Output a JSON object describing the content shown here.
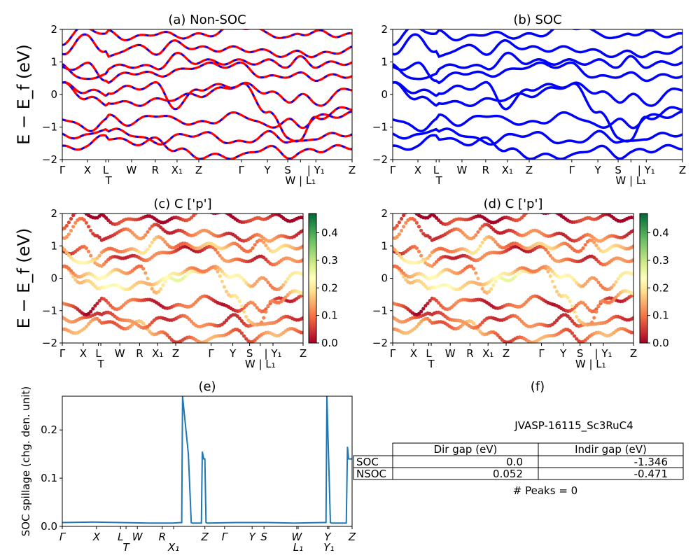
{
  "chart_data": [
    {
      "panel": "a",
      "type": "line",
      "title": "(a) Non-SOC",
      "ylabel": "E − E_f (eV)",
      "ylim": [
        -2,
        2
      ],
      "yticks": [
        "−2",
        "−1",
        "0",
        "1",
        "2"
      ],
      "xtick_labels": [
        "Γ",
        "X",
        "L",
        "T",
        "W",
        "R",
        "X₁",
        "Z",
        "Γ",
        "Y",
        "S",
        "W | L₁",
        "| Y₁",
        "Z"
      ],
      "series_colors": [
        "#ff0000",
        "#0000ff"
      ],
      "line_style": "red solid with blue dashes",
      "bands_at_ticks": [
        [
          -1.65,
          -1.6,
          -1.2,
          -1.3,
          -1.5,
          -1.4,
          -1.7,
          -1.9,
          -1.9,
          -1.6,
          -1.9,
          -1.8,
          -1.7,
          -1.6
        ],
        [
          -1.25,
          -1.3,
          -1.0,
          -1.1,
          -1.2,
          -1.5,
          -1.3,
          -1.2,
          -1.5,
          -1.2,
          -1.4,
          -1.5,
          -1.3,
          -1.2
        ],
        [
          -0.7,
          -1.1,
          -0.8,
          -0.7,
          -0.9,
          -0.6,
          -0.8,
          -0.9,
          -0.6,
          -1.0,
          -0.8,
          -1.0,
          -0.7,
          -0.6
        ],
        [
          0.3,
          -0.1,
          -0.3,
          -0.2,
          -0.3,
          -0.2,
          -0.1,
          0.0,
          0.3,
          -0.5,
          -1.3,
          -1.4,
          -0.7,
          -0.4
        ],
        [
          0.3,
          0.1,
          0.0,
          0.1,
          0.2,
          0.3,
          -0.4,
          0.2,
          0.3,
          0.1,
          -0.2,
          0.0,
          -0.3,
          0.2
        ],
        [
          0.8,
          0.9,
          0.5,
          0.4,
          0.7,
          0.6,
          0.7,
          0.9,
          0.9,
          0.5,
          0.6,
          0.6,
          0.5,
          0.6
        ],
        [
          0.9,
          0.4,
          0.7,
          0.8,
          0.9,
          0.8,
          1.2,
          1.0,
          1.0,
          1.0,
          0.9,
          1.1,
          0.9,
          1.0
        ],
        [
          1.3,
          1.8,
          1.3,
          1.1,
          1.5,
          1.3,
          1.6,
          1.4,
          1.4,
          1.3,
          1.2,
          1.3,
          1.2,
          1.4
        ],
        [
          1.6,
          2.1,
          1.8,
          1.9,
          1.7,
          1.9,
          1.8,
          1.8,
          2.1,
          1.9,
          1.7,
          1.9,
          1.9,
          1.8
        ]
      ]
    },
    {
      "panel": "b",
      "type": "line",
      "title": "(b) SOC",
      "ylim": [
        -2,
        2
      ],
      "yticks": [
        "−2",
        "−1",
        "0",
        "1",
        "2"
      ],
      "xtick_labels": [
        "Γ",
        "X",
        "L",
        "T",
        "W",
        "R",
        "X₁",
        "Z",
        "Γ",
        "Y",
        "S",
        "W | L₁",
        "| Y₁",
        "Z"
      ],
      "series_colors": [
        "#0000ff"
      ]
    },
    {
      "panel": "c",
      "type": "scatter",
      "title": "(c)  C ['p']",
      "ylabel": "E − E_f (eV)",
      "ylim": [
        -2,
        2
      ],
      "yticks": [
        "−2",
        "−1",
        "0",
        "1",
        "2"
      ],
      "xtick_labels": [
        "Γ",
        "X",
        "L",
        "T",
        "W",
        "R",
        "X₁",
        "Z",
        "Γ",
        "Y",
        "S",
        "W | L₁",
        "| Y₁",
        "Z"
      ],
      "colormap": "RdYlGn",
      "color_range": [
        0.0,
        0.47
      ],
      "colorbar_ticks": [
        "0.0",
        "0.1",
        "0.2",
        "0.3",
        "0.4"
      ]
    },
    {
      "panel": "d",
      "type": "scatter",
      "title": "(d) C ['p']",
      "ylim": [
        -2,
        2
      ],
      "yticks": [
        "−2",
        "−1",
        "0",
        "1",
        "2"
      ],
      "xtick_labels": [
        "Γ",
        "X",
        "L",
        "T",
        "W",
        "R",
        "X₁",
        "Z",
        "Γ",
        "Y",
        "S",
        "W | L₁",
        "| Y₁",
        "Z"
      ],
      "colormap": "RdYlGn",
      "color_range": [
        0.0,
        0.47
      ],
      "colorbar_ticks": [
        "0.0",
        "0.1",
        "0.2",
        "0.3",
        "0.4"
      ]
    },
    {
      "panel": "e",
      "type": "line",
      "title": "(e)",
      "ylabel": "SOC spillage (chg. den. unit)",
      "ylim": [
        0,
        0.27
      ],
      "yticks": [
        "0.0",
        "0.1",
        "0.2"
      ],
      "color": "#1f77b4",
      "xtick_labels": [
        "Γ",
        "X",
        "L",
        "T",
        "W",
        "R",
        "X₁",
        "Z",
        "Γ",
        "Y",
        "S",
        "W",
        "L₁",
        "Y",
        "Y₁",
        "Z"
      ],
      "x": [
        0,
        0.1,
        0.2,
        0.3,
        0.38,
        0.412,
        0.415,
        0.435,
        0.445,
        0.448,
        0.48,
        0.483,
        0.488,
        0.492,
        0.496,
        0.5,
        0.6,
        0.7,
        0.8,
        0.9,
        0.91,
        0.913,
        0.925,
        0.93,
        0.933,
        0.98,
        0.984,
        0.988,
        1.0
      ],
      "y": [
        0.008,
        0.009,
        0.008,
        0.007,
        0.007,
        0.008,
        0.27,
        0.15,
        0.008,
        0.007,
        0.007,
        0.155,
        0.14,
        0.14,
        0.008,
        0.007,
        0.008,
        0.008,
        0.007,
        0.008,
        0.008,
        0.27,
        0.008,
        0.007,
        0.007,
        0.007,
        0.165,
        0.14,
        0.14
      ]
    }
  ],
  "panel_f": {
    "title": "(f)",
    "material": "JVASP-16115_Sc3RuC4",
    "table": {
      "columns": [
        "Dir gap (eV)",
        "Indir gap (eV)"
      ],
      "rows": [
        {
          "label": "SOC",
          "values": [
            "0.0",
            "-1.346"
          ]
        },
        {
          "label": "NSOC",
          "values": [
            "0.052",
            "-0.471"
          ]
        }
      ]
    },
    "peaks": "# Peaks = 0"
  }
}
